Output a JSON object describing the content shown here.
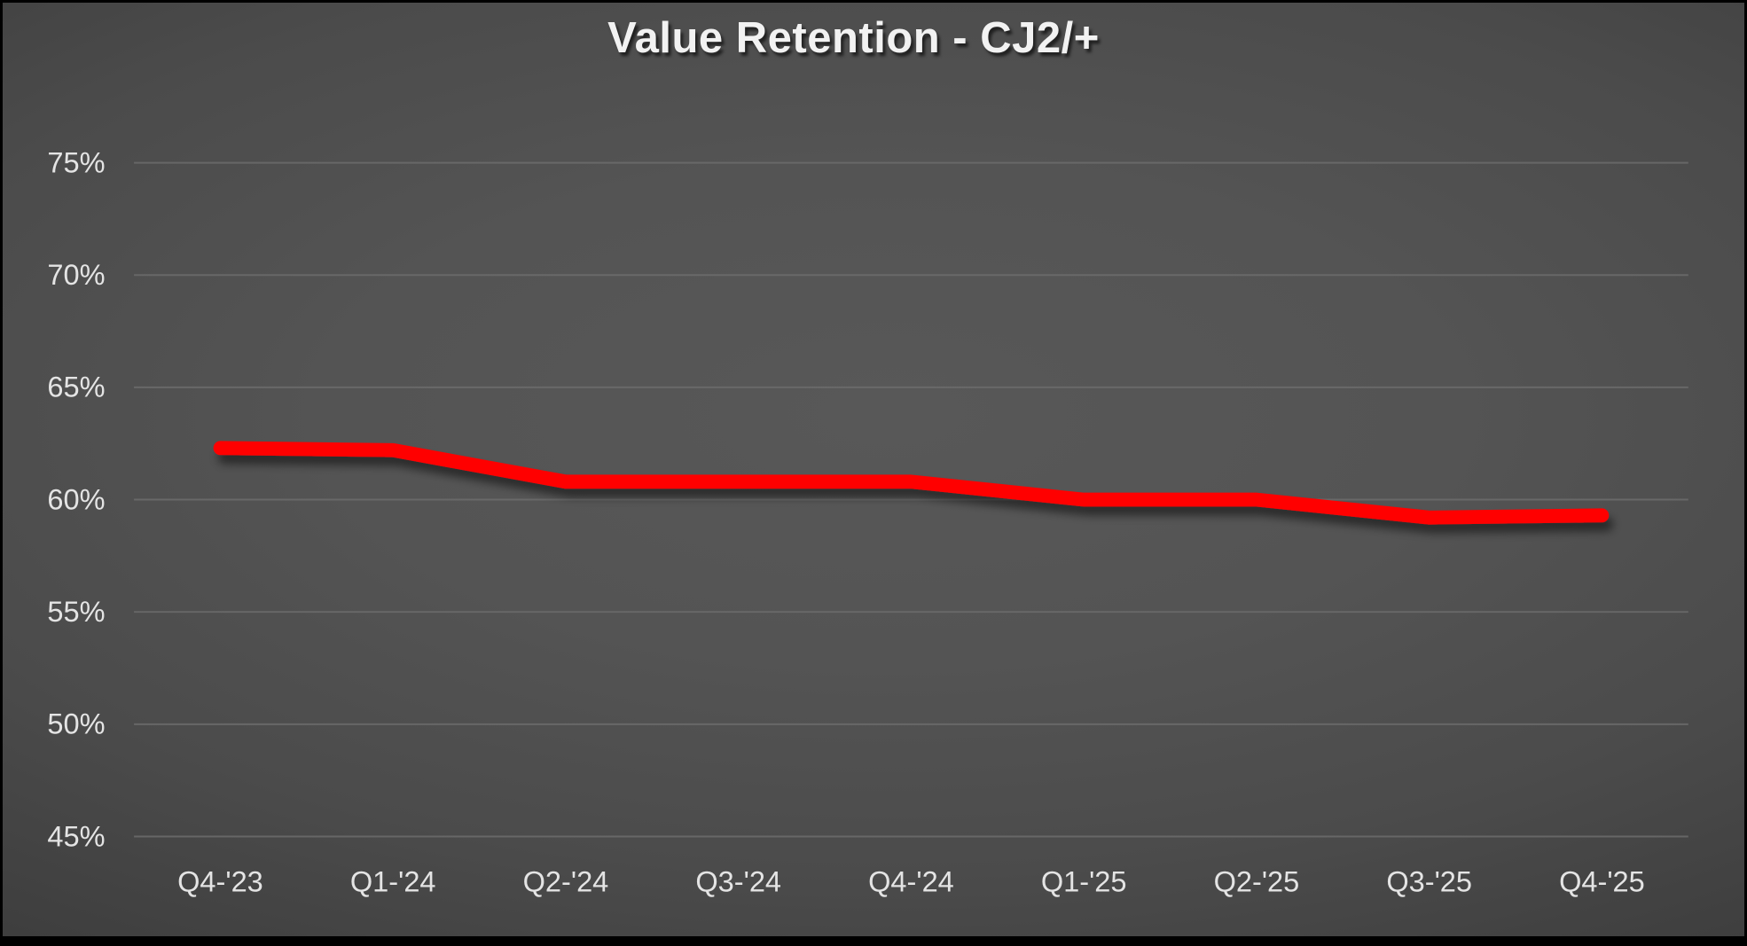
{
  "chart_data": {
    "type": "line",
    "title": "Value Retention - CJ2/+",
    "categories": [
      "Q4-'23",
      "Q1-'24",
      "Q2-'24",
      "Q3-'24",
      "Q4-'24",
      "Q1-'25",
      "Q2-'25",
      "Q3-'25",
      "Q4-'25"
    ],
    "values": [
      62.3,
      62.2,
      60.8,
      60.8,
      60.8,
      60.0,
      60.0,
      59.2,
      59.3
    ],
    "xlabel": "",
    "ylabel": "",
    "ylim": [
      45,
      75
    ],
    "y_tick_step": 5,
    "y_tick_labels": [
      "45%",
      "50%",
      "55%",
      "60%",
      "65%",
      "70%",
      "75%"
    ],
    "grid": "on",
    "legend": "none",
    "line_color": "#ff0000",
    "gridline_color": "#6e6e6e",
    "tick_text_color": "#e4e4e4",
    "title_color": "#f2f2f2",
    "background_center_color": "#565656",
    "background_edge_color": "#2b2b2b"
  }
}
